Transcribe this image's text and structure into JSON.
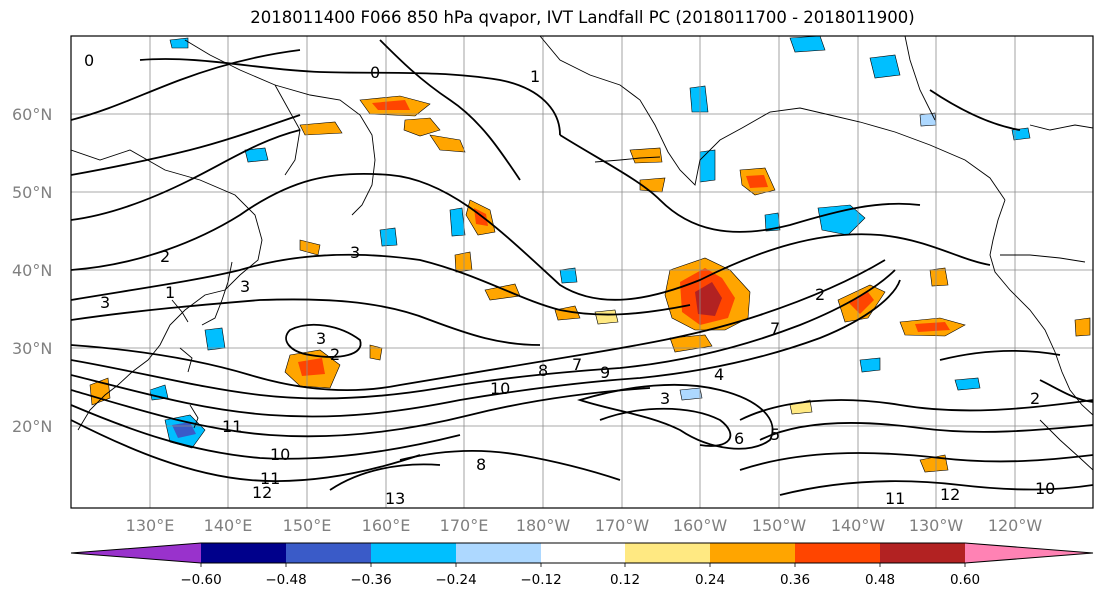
{
  "title": "2018011400 F066 850 hPa qvapor, IVT Landfall PC (2018011700 - 2018011900)",
  "lat_labels": [
    "60°N",
    "50°N",
    "40°N",
    "30°N",
    "20°N"
  ],
  "lon_labels": [
    "130°E",
    "140°E",
    "150°E",
    "160°E",
    "170°E",
    "180°W",
    "170°W",
    "160°W",
    "150°W",
    "140°W",
    "130°W",
    "120°W"
  ],
  "colorbar": {
    "colors": [
      "#9932cc",
      "#00008b",
      "#3a5bc8",
      "#00bfff",
      "#add8ff",
      "#ffffff",
      "#ffe982",
      "#ffa500",
      "#ff4500",
      "#b22222",
      "#ff82b4"
    ],
    "tick_labels": [
      "−0.60",
      "−0.48",
      "−0.36",
      "−0.24",
      "−0.12",
      "0.12",
      "0.24",
      "0.36",
      "0.48",
      "0.60"
    ]
  },
  "contour_labels": [
    "0",
    "1",
    "2",
    "3",
    "3",
    "3",
    "2",
    "3",
    "2",
    "7",
    "8",
    "9",
    "10",
    "11",
    "10",
    "11",
    "12",
    "3",
    "4",
    "6",
    "5",
    "2",
    "12",
    "11",
    "10",
    "0",
    "1",
    "13",
    "8",
    "7"
  ]
}
